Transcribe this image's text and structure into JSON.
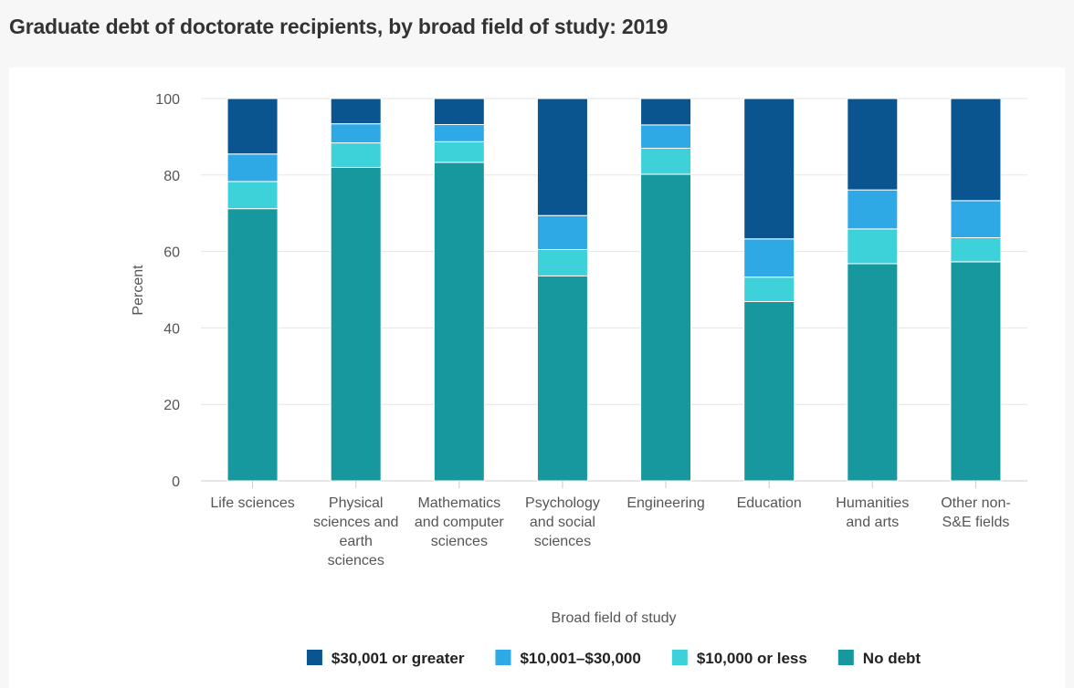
{
  "chart_data": {
    "type": "bar",
    "stacked": true,
    "title": "Graduate debt of doctorate recipients, by broad field of study: 2019",
    "xlabel": "Broad field of study",
    "ylabel": "Percent",
    "ylim": [
      0,
      100
    ],
    "yticks": [
      0,
      20,
      40,
      60,
      80,
      100
    ],
    "grid": true,
    "legend_position": "bottom",
    "categories": [
      [
        "Life sciences"
      ],
      [
        "Physical",
        "sciences and",
        "earth",
        "sciences"
      ],
      [
        "Mathematics",
        "and computer",
        "sciences"
      ],
      [
        "Psychology",
        "and social",
        "sciences"
      ],
      [
        "Engineering"
      ],
      [
        "Education"
      ],
      [
        "Humanities",
        "and arts"
      ],
      [
        "Other non-",
        "S&E fields"
      ]
    ],
    "series": [
      {
        "name": "No debt",
        "color": "#17989f",
        "values": [
          71.2,
          82.0,
          83.3,
          53.6,
          80.2,
          46.9,
          56.8,
          57.3
        ]
      },
      {
        "name": "$10,000 or less",
        "color": "#3dd1d9",
        "values": [
          7.1,
          6.4,
          5.4,
          6.9,
          6.8,
          6.4,
          9.1,
          6.3
        ]
      },
      {
        "name": "$10,001–$30,000",
        "color": "#2fa9e5",
        "values": [
          7.2,
          5.0,
          4.5,
          8.9,
          6.1,
          10.0,
          10.2,
          9.7
        ]
      },
      {
        "name": "$30,001 or greater",
        "color": "#0a5590",
        "values": [
          14.5,
          6.6,
          6.8,
          30.6,
          6.9,
          36.7,
          23.9,
          26.7
        ]
      }
    ],
    "legend_order": [
      3,
      2,
      1,
      0
    ]
  }
}
